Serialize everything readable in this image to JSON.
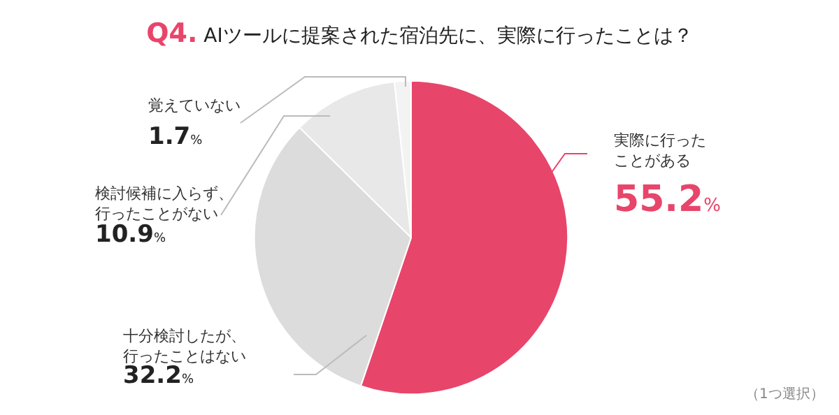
{
  "chart_data": {
    "type": "pie",
    "title": "Q4. AIツールに提案された宿泊先に、実際に行ったことは？",
    "categories": [
      "実際に行ったことがある",
      "十分検討したが、行ったことはない",
      "検討候補に入らず、行ったことがない",
      "覚えていない"
    ],
    "values": [
      55.2,
      32.2,
      10.9,
      1.7
    ],
    "value_labels": [
      "55.2%",
      "32.2%",
      "10.9%",
      "1.7%"
    ],
    "colors": [
      "#e8456b",
      "#dcdcdc",
      "#e8e8e8",
      "#f3f3f3"
    ],
    "annotations": [
      "（1つ選択）"
    ]
  }
}
